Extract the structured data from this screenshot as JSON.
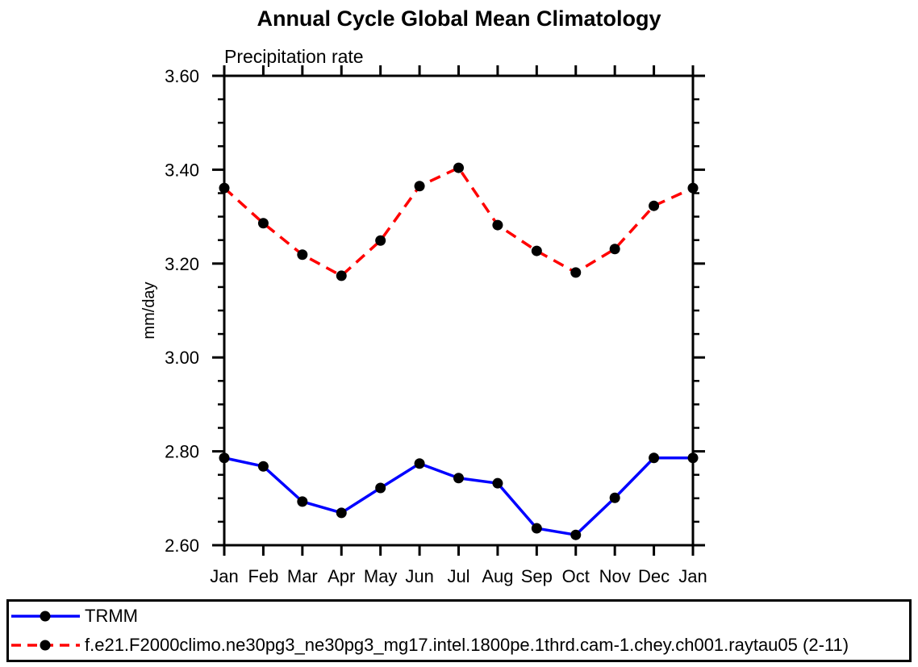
{
  "chart_data": {
    "type": "line",
    "title": "Annual Cycle Global Mean Climatology",
    "subtitle": "Precipitation rate",
    "ylabel": "mm/day",
    "xlabel": "",
    "categories": [
      "Jan",
      "Feb",
      "Mar",
      "Apr",
      "May",
      "Jun",
      "Jul",
      "Aug",
      "Sep",
      "Oct",
      "Nov",
      "Dec",
      "Jan"
    ],
    "ylim": [
      2.6,
      3.6
    ],
    "ytick_major_step": 0.2,
    "ytick_minor_step": 0.05,
    "ytick_labels": [
      "2.60",
      "2.80",
      "3.00",
      "3.20",
      "3.40",
      "3.60"
    ],
    "grid": false,
    "legend_position": "bottom",
    "frame_color": "#000000",
    "series": [
      {
        "name": "TRMM",
        "color": "#0000ff",
        "line_style": "solid",
        "marker": "filled-circle",
        "marker_color": "#000000",
        "values": [
          2.786,
          2.768,
          2.693,
          2.669,
          2.722,
          2.774,
          2.743,
          2.732,
          2.636,
          2.622,
          2.701,
          2.786,
          2.786
        ]
      },
      {
        "name": "f.e21.F2000climo.ne30pg3_ne30pg3_mg17.intel.1800pe.1thrd.cam-1.chey.ch001.raytau05 (2-11)",
        "color": "#ff0000",
        "line_style": "dashed",
        "marker": "filled-circle",
        "marker_color": "#000000",
        "values": [
          3.361,
          3.286,
          3.219,
          3.174,
          3.249,
          3.365,
          3.404,
          3.282,
          3.227,
          3.181,
          3.231,
          3.323,
          3.361
        ]
      }
    ]
  }
}
